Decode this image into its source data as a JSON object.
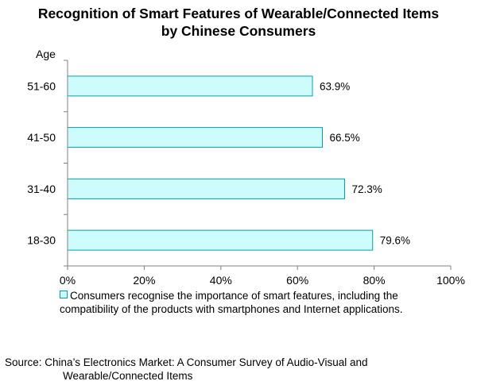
{
  "chart_data": {
    "type": "bar",
    "orientation": "horizontal",
    "title": [
      "Recognition of Smart Features of Wearable/Connected Items",
      "by Chinese Consumers"
    ],
    "ylabel": "Age",
    "categories": [
      "51-60",
      "41-50",
      "31-40",
      "18-30"
    ],
    "values": [
      63.9,
      66.5,
      72.3,
      79.6
    ],
    "value_labels": [
      "63.9%",
      "66.5%",
      "72.3%",
      "79.6%"
    ],
    "xlim": [
      0,
      100
    ],
    "x_ticks": [
      0,
      20,
      40,
      60,
      80,
      100
    ],
    "x_tick_labels": [
      "0%",
      "20%",
      "40%",
      "60%",
      "80%",
      "100%"
    ],
    "grid": false,
    "series": [
      {
        "name": "Consumers recognise the importance of smart features, including the compatibility of the products with smartphones and Internet applications.",
        "legend_lines": [
          "Consumers recognise the importance of smart features, including the",
          "compatibility of the products with smartphones and Internet applications."
        ],
        "color": "#ccfcfc",
        "border_color": "#00a0b4"
      }
    ],
    "legend_position": "bottom"
  },
  "source": {
    "line1": "Source: China’s Electronics Market: A Consumer Survey of Audio-Visual and",
    "line2": "Wearable/Connected Items"
  }
}
